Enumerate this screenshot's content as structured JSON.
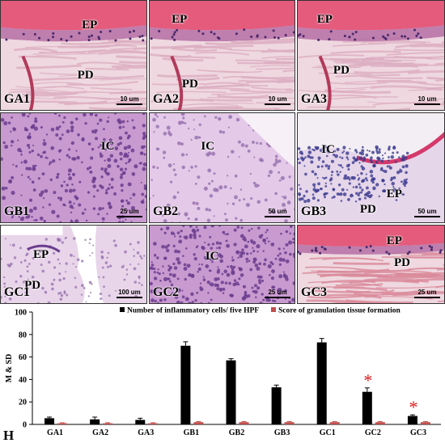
{
  "panels": [
    {
      "id": "GA1",
      "labels": [
        "EP",
        "PD"
      ],
      "scale": "10 um"
    },
    {
      "id": "GA2",
      "labels": [
        "EP",
        "PD"
      ],
      "scale": "10 um"
    },
    {
      "id": "GA3",
      "labels": [
        "EP",
        "PD"
      ],
      "scale": "10 um"
    },
    {
      "id": "GB1",
      "labels": [
        "IC"
      ],
      "scale": "25 um"
    },
    {
      "id": "GB2",
      "labels": [
        "IC"
      ],
      "scale": "50 um"
    },
    {
      "id": "GB3",
      "labels": [
        "IC",
        "EP",
        "PD"
      ],
      "scale": "50 um"
    },
    {
      "id": "GC1",
      "labels": [
        "EP",
        "PD"
      ],
      "scale": "100 um"
    },
    {
      "id": "GC2",
      "labels": [
        "IC"
      ],
      "scale": "25 um"
    },
    {
      "id": "GC3",
      "labels": [
        "EP",
        "PD"
      ],
      "scale": "25 um"
    }
  ],
  "chart_panel_label": "H",
  "chart_data": {
    "type": "bar",
    "ylabel": "M & SD",
    "ylim": [
      0,
      100
    ],
    "yticks": [
      0,
      20,
      40,
      60,
      80,
      100
    ],
    "categories": [
      "GA1",
      "GA2",
      "GA3",
      "GB1",
      "GB2",
      "GB3",
      "GC1",
      "GC2",
      "GC3"
    ],
    "series": [
      {
        "name": "Number of inflammatory cells/ five HPF",
        "color": "#000000",
        "values": [
          5.5,
          4.5,
          4,
          70,
          57,
          33,
          73,
          29,
          7.5
        ],
        "errors": [
          1,
          2,
          1.5,
          3.5,
          1.5,
          2,
          3.5,
          3.5,
          1
        ]
      },
      {
        "name": "Score of granulation tissue formation",
        "color": "#c0504d",
        "values": [
          1,
          1,
          1,
          2,
          2,
          2,
          2,
          2,
          2
        ],
        "errors": [
          0.5,
          0.5,
          0.5,
          0.5,
          0.5,
          0.5,
          0.5,
          0.5,
          0.5
        ]
      }
    ],
    "annotations": [
      {
        "category": "GC2",
        "symbol": "*",
        "color": "#e0191c"
      },
      {
        "category": "GC3",
        "symbol": "*",
        "color": "#e0191c"
      }
    ],
    "legend_position": "top",
    "grid": false
  }
}
